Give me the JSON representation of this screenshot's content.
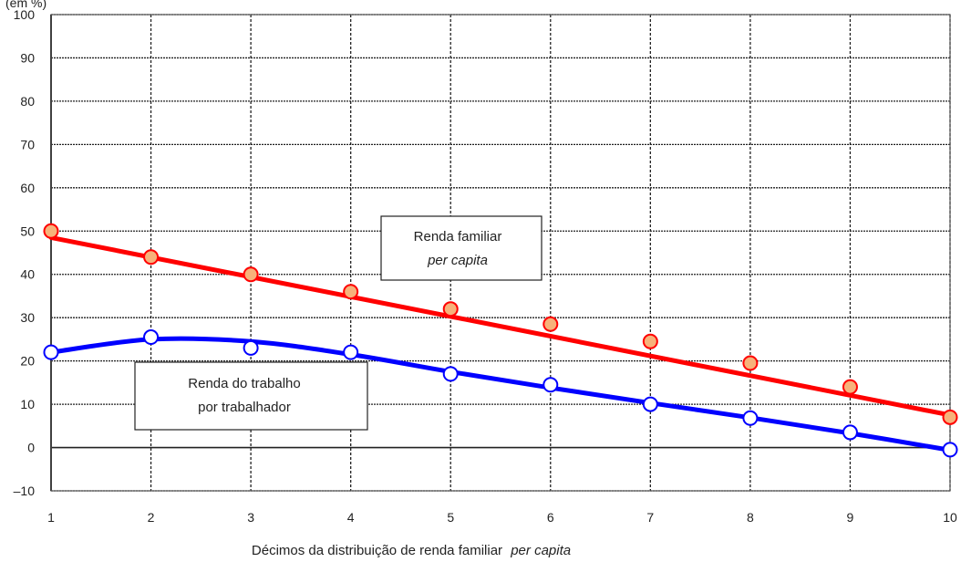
{
  "chart_data": {
    "type": "line",
    "title": "",
    "y_unit": "(em %)",
    "xlabel": "Décimos da distribuição de renda familiar",
    "xlabel_italic": "per capita",
    "x": [
      1,
      2,
      3,
      4,
      5,
      6,
      7,
      8,
      9,
      10
    ],
    "xlim": [
      1,
      10
    ],
    "ylim": [
      -10,
      100
    ],
    "yticks": [
      -10,
      0,
      10,
      20,
      30,
      40,
      50,
      60,
      70,
      80,
      90,
      100
    ],
    "ytick_labels": [
      "–10",
      "0",
      "10",
      "20",
      "30",
      "40",
      "50",
      "60",
      "70",
      "80",
      "90",
      "100"
    ],
    "xticks": [
      1,
      2,
      3,
      4,
      5,
      6,
      7,
      8,
      9,
      10
    ],
    "grid": true,
    "series": [
      {
        "name": "Renda familiar",
        "name_italic": "per capita",
        "color": "#ff0000",
        "marker_fill": "#f7b27a",
        "marker_edge": "#ff0000",
        "values": [
          50,
          44,
          40,
          36,
          32,
          28.5,
          24.5,
          19.5,
          14,
          7
        ],
        "trend_start": 48.5,
        "trend_end": 7.5
      },
      {
        "name": "Renda do trabalho",
        "name_line2": "por trabalhador",
        "color": "#0000ff",
        "marker_fill": "#ffffff",
        "marker_edge": "#0000ff",
        "values": [
          22,
          25.5,
          23,
          22,
          17,
          14.5,
          10,
          6.8,
          3.5,
          -0.5
        ],
        "trend": [
          22,
          25,
          24.5,
          21.5,
          17.5,
          13.8,
          10.3,
          6.9,
          3.3,
          -0.6
        ]
      }
    ]
  }
}
